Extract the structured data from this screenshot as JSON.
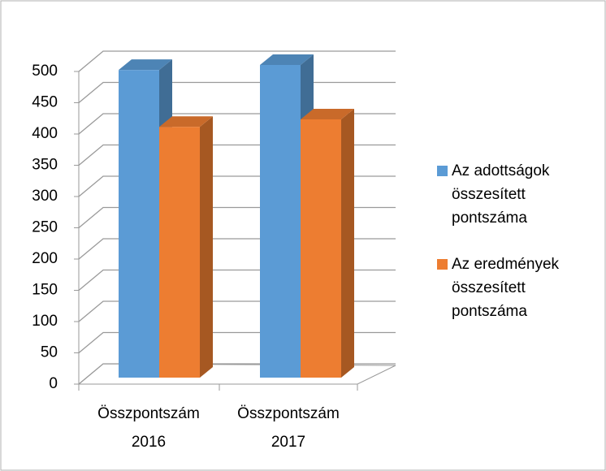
{
  "chart_data": {
    "type": "bar3d",
    "categories": [
      "Összpontszám 2016",
      "Összpontszám 2017"
    ],
    "series": [
      {
        "name": "Az adottságok összesített pontszáma",
        "color": "#5b9bd5",
        "values": [
          492,
          500
        ]
      },
      {
        "name": "Az eredmények összesített pontszáma",
        "color": "#ed7d31",
        "values": [
          401,
          413
        ]
      }
    ],
    "ylim": [
      0,
      500
    ],
    "yticks": [
      0,
      50,
      100,
      150,
      200,
      250,
      300,
      350,
      400,
      450,
      500
    ],
    "grid": true,
    "legend": "right"
  }
}
